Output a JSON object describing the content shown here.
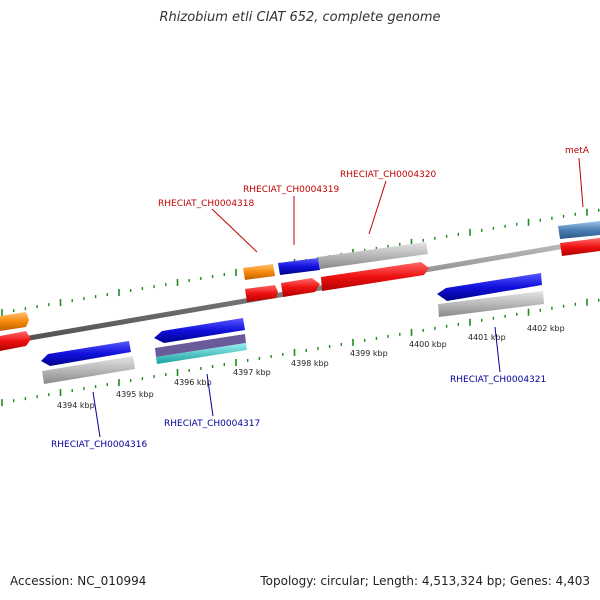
{
  "title": "Rhizobium etli CIAT 652, complete genome",
  "accession_text": "Accession: NC_010994",
  "summary_text": "Topology: circular; Length: 4,513,324 bp; Genes: 4,403",
  "kbp_labels": [
    "4394 kbp",
    "4395 kbp",
    "4396 kbp",
    "4397 kbp",
    "4398 kbp",
    "4399 kbp",
    "4400 kbp",
    "4401 kbp",
    "4402 kbp"
  ],
  "gene_labels": {
    "rheciat_ch0004316": "RHECIAT_CH0004316",
    "rheciat_ch0004317": "RHECIAT_CH0004317",
    "rheciat_ch0004318": "RHECIAT_CH0004318",
    "rheciat_ch0004319": "RHECIAT_CH0004319",
    "rheciat_ch0004320": "RHECIAT_CH0004320",
    "rheciat_ch0004321": "RHECIAT_CH0004321",
    "meta": "metA"
  },
  "colors": {
    "forward_cds": "#ee1111",
    "reverse_cds": "#1111dd",
    "feature_orange": "#f58a0c",
    "feature_gray": "#b8b8b8",
    "feature_steelblue": "#4a7fb5",
    "feature_teal": "#2cc2c2",
    "tick_green": "#1f8a1f",
    "backbone": "#808080",
    "label_forward": "#c00000",
    "label_reverse": "#000099"
  }
}
